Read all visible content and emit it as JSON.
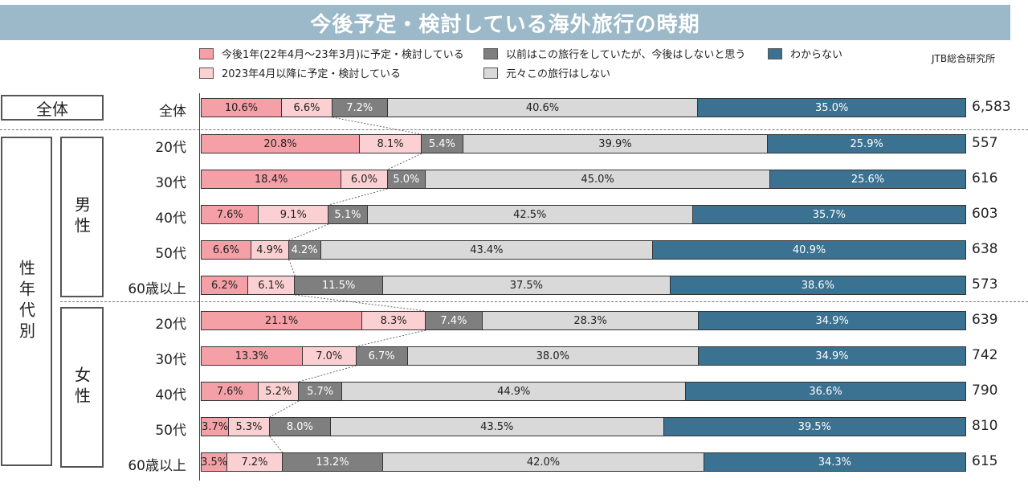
{
  "title": "今後予定・検討している海外旅行の時期",
  "source": "JTB総合研究所",
  "legend": [
    {
      "label": "今後1年(22年4月～23年3月)に予定・検討している",
      "color": "#f4a0a6"
    },
    {
      "label": "2023年4月以降に予定・検討している",
      "color": "#fbd0d2"
    },
    {
      "label": "以前はこの旅行をしていたが、今後はしないと思う",
      "color": "#7f7f7f"
    },
    {
      "label": "元々この旅行はしない",
      "color": "#d9d9d9"
    },
    {
      "label": "わからない",
      "color": "#3b7191"
    }
  ],
  "groups": {
    "all": "全体",
    "gender_age": "性年代別",
    "male": "男性",
    "female": "女性"
  },
  "chart_data": {
    "type": "bar",
    "orientation": "horizontal-stacked-100",
    "title": "今後予定・検討している海外旅行の時期",
    "series_names": [
      "今後1年(22年4月～23年3月)に予定・検討している",
      "2023年4月以降に予定・検討している",
      "以前はこの旅行をしていたが、今後はしないと思う",
      "元々この旅行はしない",
      "わからない"
    ],
    "rows": [
      {
        "label": "全体",
        "group": "全体",
        "values": [
          10.6,
          6.6,
          7.2,
          40.6,
          35.0
        ],
        "total": "6,583"
      },
      {
        "label": "20代",
        "group": "男性",
        "values": [
          20.8,
          8.1,
          5.4,
          39.9,
          25.9
        ],
        "total": "557"
      },
      {
        "label": "30代",
        "group": "男性",
        "values": [
          18.4,
          6.0,
          5.0,
          45.0,
          25.6
        ],
        "total": "616"
      },
      {
        "label": "40代",
        "group": "男性",
        "values": [
          7.6,
          9.1,
          5.1,
          42.5,
          35.7
        ],
        "total": "603"
      },
      {
        "label": "50代",
        "group": "男性",
        "values": [
          6.6,
          4.9,
          4.2,
          43.4,
          40.9
        ],
        "total": "638"
      },
      {
        "label": "60歳以上",
        "group": "男性",
        "values": [
          6.2,
          6.1,
          11.5,
          37.5,
          38.6
        ],
        "total": "573"
      },
      {
        "label": "20代",
        "group": "女性",
        "values": [
          21.1,
          8.3,
          7.4,
          28.3,
          34.9
        ],
        "total": "639"
      },
      {
        "label": "30代",
        "group": "女性",
        "values": [
          13.3,
          7.0,
          6.7,
          38.0,
          34.9
        ],
        "total": "742"
      },
      {
        "label": "40代",
        "group": "女性",
        "values": [
          7.6,
          5.2,
          5.7,
          44.9,
          36.6
        ],
        "total": "790"
      },
      {
        "label": "50代",
        "group": "女性",
        "values": [
          3.7,
          5.3,
          8.0,
          43.5,
          39.5
        ],
        "total": "810"
      },
      {
        "label": "60歳以上",
        "group": "女性",
        "values": [
          3.5,
          7.2,
          13.2,
          42.0,
          34.3
        ],
        "total": "615"
      }
    ],
    "xlim": [
      0,
      100
    ],
    "grid": false,
    "legend_position": "top"
  }
}
